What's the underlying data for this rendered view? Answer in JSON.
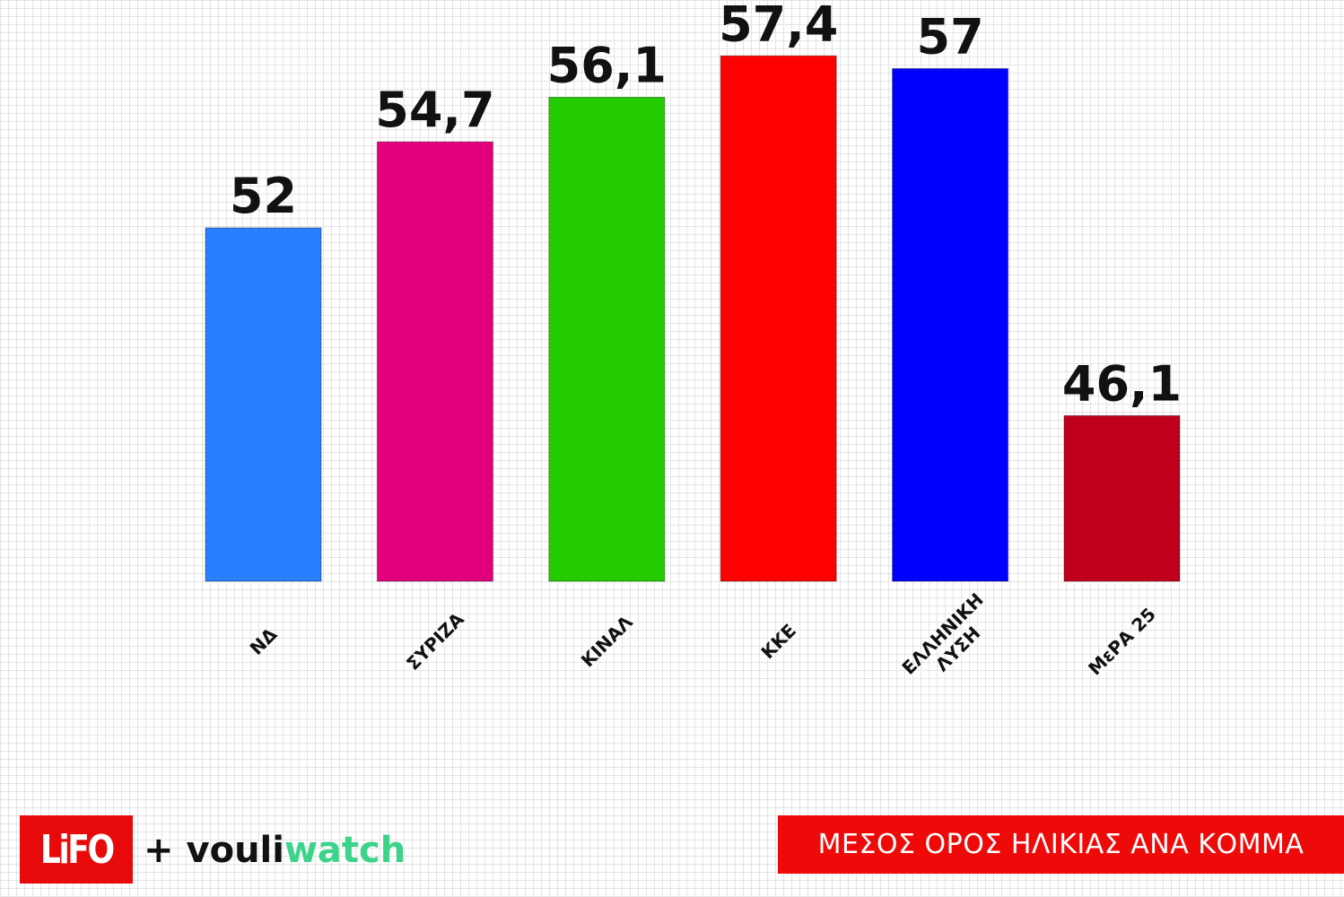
{
  "chart_data": {
    "type": "bar",
    "title": "ΜΕΣΟΣ ΟΡΟΣ ΗΛΙΚΙΑΣ ΑΝΑ ΚΟΜΜΑ",
    "categories": [
      [
        "ΝΔ"
      ],
      [
        "ΣΥΡΙΖΑ"
      ],
      [
        "ΚΙΝΑΛ"
      ],
      [
        "ΚΚΕ"
      ],
      [
        "ΕΛΛΗΝΙΚΗ",
        "ΛΥΣΗ"
      ],
      [
        "ΜεΡΑ 25"
      ]
    ],
    "values": [
      52,
      54.7,
      56.1,
      57.4,
      57,
      46.1
    ],
    "value_labels": [
      "52",
      "54,7",
      "56,1",
      "57,4",
      "57",
      "46,1"
    ],
    "colors": [
      "#2a7fff",
      "#e3007d",
      "#22cc00",
      "#ff0000",
      "#0000ff",
      "#c0001a"
    ],
    "xlabel": "",
    "ylabel": "",
    "grid": false,
    "axis_labels_rotation": "-45deg"
  },
  "footer": {
    "logo_text": "LiFO",
    "plus": "+",
    "partner_part1": "vouli",
    "partner_part2": "watch"
  }
}
